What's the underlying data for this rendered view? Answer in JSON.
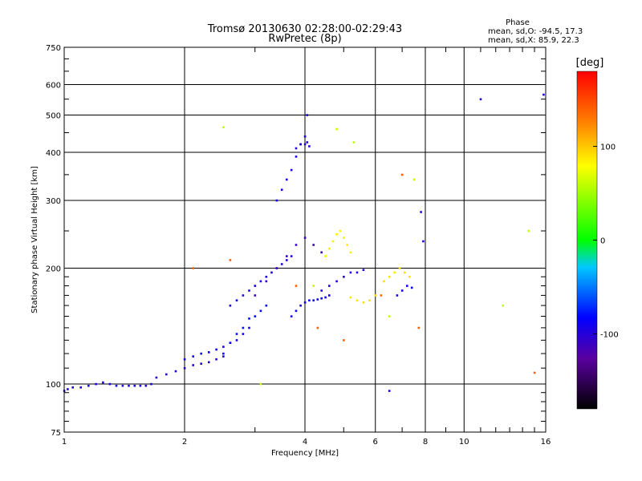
{
  "chart_data": {
    "type": "scatter",
    "title": "Tromsø 20130630 02:28:00-02:29:43",
    "subtitle": "RwPretec (8p)",
    "phase_header": "Phase",
    "phase_line_o": "mean, sd,O: -94.5, 17.3",
    "phase_line_x": "mean, sd,X:  85.9, 22.3",
    "xlabel": "Frequency [MHz]",
    "ylabel": "Stationary phase Virtual Height [km]",
    "x_scale": "log",
    "y_scale": "log",
    "xlim": [
      1,
      16
    ],
    "ylim": [
      75,
      750
    ],
    "x_major_ticks": [
      1,
      2,
      4,
      6,
      8,
      10,
      16
    ],
    "x_tick_labels": [
      "1",
      "2",
      "4",
      "6",
      "8",
      "10",
      "16"
    ],
    "x_minor_ticks": [
      3,
      5,
      7,
      9,
      11,
      12,
      13,
      14,
      15
    ],
    "y_major_ticks": [
      75,
      100,
      200,
      300,
      400,
      500,
      600,
      750
    ],
    "y_tick_labels": [
      "75",
      "100",
      "200",
      "300",
      "400",
      "500",
      "600",
      "750"
    ],
    "y_minor_ticks": [
      80,
      85,
      90,
      95,
      110,
      120,
      130,
      140,
      150,
      160,
      170,
      180,
      190,
      250,
      350,
      450,
      550,
      650,
      700
    ],
    "grid": true,
    "colorbar": {
      "label": "[deg]",
      "range": [
        -180,
        180
      ],
      "tick_values": [
        100,
        0,
        -100
      ],
      "tick_labels": [
        "100",
        "0",
        "-100"
      ]
    },
    "series": [
      {
        "name": "",
        "phase_deg": -95,
        "x": [
          1.0,
          1.02,
          1.05,
          1.1,
          1.15,
          1.2,
          1.25,
          1.3,
          1.35,
          1.4,
          1.45,
          1.5,
          1.55,
          1.6,
          1.65
        ],
        "y": [
          96,
          97,
          98,
          98,
          99,
          100,
          101,
          100,
          99,
          99,
          99,
          99,
          99,
          99,
          100
        ]
      },
      {
        "name": "",
        "phase_deg": -100,
        "x": [
          1.7,
          1.8,
          1.9,
          2.0,
          2.1,
          2.2,
          2.3,
          2.4,
          2.5
        ],
        "y": [
          104,
          106,
          108,
          110,
          112,
          113,
          114,
          116,
          118
        ]
      },
      {
        "name": "",
        "phase_deg": -90,
        "x": [
          2.0,
          2.1,
          2.2,
          2.3,
          2.4,
          2.5,
          2.6,
          2.7,
          2.8,
          2.9
        ],
        "y": [
          116,
          118,
          120,
          121,
          123,
          125,
          128,
          130,
          135,
          140
        ]
      },
      {
        "name": "",
        "phase_deg": -80,
        "x": [
          2.5,
          2.6,
          2.7,
          2.8,
          2.9,
          3.0,
          3.1,
          3.2
        ],
        "y": [
          120,
          128,
          135,
          140,
          148,
          150,
          155,
          160
        ]
      },
      {
        "name": "",
        "phase_deg": -95,
        "x": [
          2.6,
          2.7,
          2.8,
          2.9,
          3.0,
          3.1,
          3.2,
          3.3,
          3.4,
          3.5,
          3.6,
          3.7
        ],
        "y": [
          160,
          165,
          170,
          175,
          180,
          185,
          190,
          195,
          200,
          205,
          210,
          215
        ]
      },
      {
        "name": "",
        "phase_deg": -110,
        "x": [
          3.0,
          3.2,
          3.4,
          3.6,
          3.8,
          4.0,
          4.2,
          4.4
        ],
        "y": [
          170,
          185,
          200,
          215,
          230,
          240,
          230,
          220
        ]
      },
      {
        "name": "",
        "phase_deg": -95,
        "x": [
          3.4,
          3.5,
          3.6,
          3.7,
          3.8,
          3.9,
          4.0,
          4.05
        ],
        "y": [
          300,
          320,
          340,
          360,
          390,
          420,
          440,
          500
        ]
      },
      {
        "name": "",
        "phase_deg": -100,
        "x": [
          3.8,
          3.9,
          4.0,
          4.05,
          4.1
        ],
        "y": [
          410,
          420,
          420,
          425,
          415
        ]
      },
      {
        "name": "",
        "phase_deg": -90,
        "x": [
          3.7,
          3.8,
          3.9,
          4.0,
          4.1,
          4.2,
          4.3,
          4.4,
          4.5,
          4.6
        ],
        "y": [
          150,
          155,
          160,
          163,
          165,
          165,
          166,
          167,
          168,
          170
        ]
      },
      {
        "name": "",
        "phase_deg": -100,
        "x": [
          4.4,
          4.6,
          4.8,
          5.0,
          5.2,
          5.4,
          5.6
        ],
        "y": [
          175,
          180,
          185,
          190,
          195,
          195,
          198
        ]
      },
      {
        "name": "",
        "phase_deg": 85,
        "x": [
          4.5,
          4.6,
          4.7,
          4.8,
          4.9,
          5.0,
          5.1,
          5.2
        ],
        "y": [
          215,
          225,
          235,
          245,
          250,
          240,
          230,
          220
        ]
      },
      {
        "name": "",
        "phase_deg": 90,
        "x": [
          5.2,
          5.4,
          5.6,
          5.8,
          6.0
        ],
        "y": [
          168,
          165,
          163,
          165,
          170
        ]
      },
      {
        "name": "",
        "phase_deg": 90,
        "x": [
          6.3,
          6.5,
          6.7,
          6.9,
          7.1,
          7.3
        ],
        "y": [
          185,
          190,
          195,
          200,
          195,
          190
        ]
      },
      {
        "name": "",
        "phase_deg": -90,
        "x": [
          6.8,
          7.0,
          7.2,
          7.4
        ],
        "y": [
          170,
          175,
          180,
          178
        ]
      },
      {
        "name": "",
        "phase_deg": 60,
        "x": [
          2.5,
          3.1,
          4.2,
          4.8,
          5.3,
          6.5,
          7.5,
          12.5,
          14.5
        ],
        "y": [
          465,
          100,
          180,
          460,
          425,
          150,
          340,
          160,
          250
        ]
      },
      {
        "name": "",
        "phase_deg": 140,
        "x": [
          2.1,
          2.6,
          3.8,
          4.3,
          5.0,
          6.2,
          7.0,
          7.7,
          15.0
        ],
        "y": [
          200,
          210,
          180,
          140,
          130,
          170,
          350,
          140,
          107
        ]
      },
      {
        "name": "",
        "phase_deg": -100,
        "x": [
          6.5,
          7.8,
          7.9,
          11.0,
          15.8
        ],
        "y": [
          96,
          280,
          235,
          550,
          565
        ]
      }
    ]
  }
}
